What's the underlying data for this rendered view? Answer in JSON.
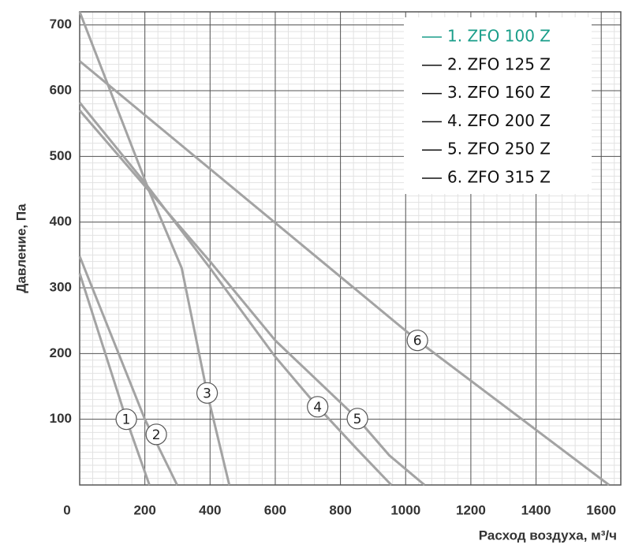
{
  "chart_data": {
    "type": "line",
    "x_label": "Расход воздуха, м³/ч",
    "y_label": "Давление, Па",
    "xlim": [
      0,
      1660
    ],
    "ylim": [
      0,
      720
    ],
    "xticks": [
      0,
      200,
      400,
      600,
      800,
      1000,
      1200,
      1400,
      1600
    ],
    "yticks": [
      100,
      200,
      300,
      400,
      500,
      600,
      700
    ],
    "grid": true,
    "minor_grid": true,
    "legend_position": "upper right",
    "series": [
      {
        "name": "1. ZFO 100 Z",
        "color": "#a3a3a3",
        "legend_color": "#1a9e8a",
        "x": [
          0,
          143,
          214
        ],
        "values": [
          322,
          100,
          0
        ]
      },
      {
        "name": "2. ZFO 125 Z",
        "color": "#a3a3a3",
        "legend_color": "#111111",
        "x": [
          0,
          200,
          299
        ],
        "values": [
          348,
          100,
          0
        ]
      },
      {
        "name": "3. ZFO 160 Z",
        "color": "#a3a3a3",
        "legend_color": "#111111",
        "x": [
          0,
          100,
          216,
          313,
          391,
          459
        ],
        "values": [
          720,
          592,
          444,
          330,
          140,
          0
        ]
      },
      {
        "name": "4. ZFO 200 Z",
        "color": "#a3a3a3",
        "legend_color": "#111111",
        "x": [
          0,
          200,
          400,
          600,
          730,
          850,
          956
        ],
        "values": [
          582,
          460,
          330,
          195,
          119,
          55,
          0
        ]
      },
      {
        "name": "5. ZFO 250 Z",
        "color": "#a3a3a3",
        "legend_color": "#111111",
        "x": [
          0,
          200,
          400,
          600,
          852,
          950,
          1058
        ],
        "values": [
          570,
          455,
          340,
          220,
          101,
          45,
          0
        ]
      },
      {
        "name": "6. ZFO 315 Z",
        "color": "#a3a3a3",
        "legend_color": "#111111",
        "x": [
          0,
          1036,
          1624
        ],
        "values": [
          645,
          220,
          0
        ]
      }
    ],
    "annotations": [
      {
        "text": "1",
        "x": 143,
        "y": 100
      },
      {
        "text": "2",
        "x": 235,
        "y": 77
      },
      {
        "text": "3",
        "x": 391,
        "y": 140
      },
      {
        "text": "4",
        "x": 730,
        "y": 119
      },
      {
        "text": "5",
        "x": 852,
        "y": 101
      },
      {
        "text": "6",
        "x": 1036,
        "y": 220
      }
    ]
  }
}
